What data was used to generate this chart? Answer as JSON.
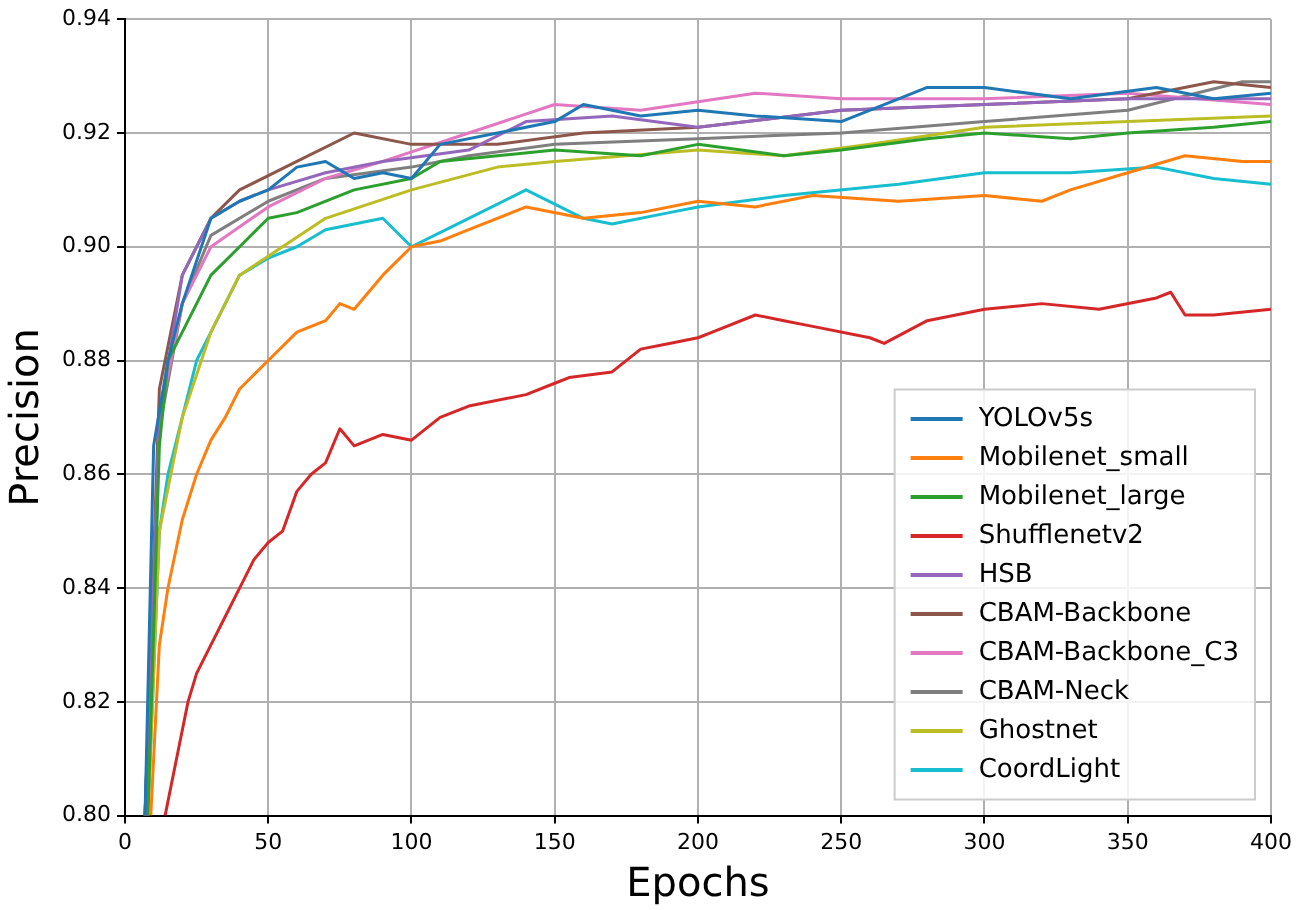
{
  "chart_data": {
    "type": "line",
    "xlabel": "Epochs",
    "ylabel": "Precision",
    "xlim": [
      0,
      400
    ],
    "ylim": [
      0.8,
      0.94
    ],
    "xticks": [
      0,
      50,
      100,
      150,
      200,
      250,
      300,
      350,
      400
    ],
    "yticks": [
      {
        "value": 0.8,
        "label": "0.80"
      },
      {
        "value": 0.82,
        "label": "0.82"
      },
      {
        "value": 0.84,
        "label": "0.84"
      },
      {
        "value": 0.86,
        "label": "0.86"
      },
      {
        "value": 0.88,
        "label": "0.88"
      },
      {
        "value": 0.9,
        "label": "0.90"
      },
      {
        "value": 0.92,
        "label": "0.92"
      },
      {
        "value": 0.94,
        "label": "0.94"
      }
    ],
    "grid": true,
    "legend": "bottom right",
    "marker": "none",
    "line_style": "solid",
    "series": [
      {
        "name": "YOLOv5s",
        "color": "#1f77b4",
        "x": [
          7,
          10,
          15,
          20,
          30,
          40,
          50,
          60,
          70,
          80,
          90,
          100,
          110,
          130,
          150,
          160,
          180,
          200,
          220,
          250,
          270,
          280,
          300,
          330,
          360,
          380,
          400
        ],
        "values": [
          0.8,
          0.865,
          0.88,
          0.89,
          0.905,
          0.908,
          0.91,
          0.914,
          0.915,
          0.912,
          0.913,
          0.912,
          0.918,
          0.92,
          0.922,
          0.925,
          0.923,
          0.924,
          0.923,
          0.922,
          0.926,
          0.928,
          0.928,
          0.926,
          0.928,
          0.926,
          0.927
        ]
      },
      {
        "name": "Mobilenet_small",
        "color": "#ff7f0e",
        "x": [
          9,
          12,
          15,
          20,
          25,
          30,
          35,
          40,
          50,
          60,
          70,
          75,
          80,
          90,
          100,
          110,
          120,
          140,
          160,
          180,
          200,
          220,
          240,
          270,
          300,
          320,
          330,
          350,
          370,
          390,
          400
        ],
        "values": [
          0.8,
          0.83,
          0.84,
          0.852,
          0.86,
          0.866,
          0.87,
          0.875,
          0.88,
          0.885,
          0.887,
          0.89,
          0.889,
          0.895,
          0.9,
          0.901,
          0.903,
          0.907,
          0.905,
          0.906,
          0.908,
          0.907,
          0.909,
          0.908,
          0.909,
          0.908,
          0.91,
          0.913,
          0.916,
          0.915,
          0.915
        ]
      },
      {
        "name": "Mobilenet_large",
        "color": "#2ca02c",
        "x": [
          8,
          12,
          15,
          20,
          30,
          40,
          50,
          60,
          80,
          100,
          110,
          130,
          150,
          180,
          200,
          230,
          250,
          280,
          300,
          330,
          350,
          380,
          400
        ],
        "values": [
          0.8,
          0.865,
          0.88,
          0.885,
          0.895,
          0.9,
          0.905,
          0.906,
          0.91,
          0.912,
          0.915,
          0.916,
          0.917,
          0.916,
          0.918,
          0.916,
          0.917,
          0.919,
          0.92,
          0.919,
          0.92,
          0.921,
          0.922
        ]
      },
      {
        "name": "Shufflenetv2",
        "color": "#d62728",
        "x": [
          14,
          18,
          22,
          25,
          30,
          35,
          40,
          45,
          50,
          55,
          60,
          65,
          70,
          75,
          80,
          90,
          100,
          110,
          120,
          140,
          150,
          155,
          170,
          180,
          190,
          200,
          205,
          220,
          230,
          240,
          260,
          265,
          280,
          300,
          320,
          340,
          360,
          365,
          370,
          380,
          400
        ],
        "values": [
          0.8,
          0.81,
          0.82,
          0.825,
          0.83,
          0.835,
          0.84,
          0.845,
          0.848,
          0.85,
          0.857,
          0.86,
          0.862,
          0.868,
          0.865,
          0.867,
          0.866,
          0.87,
          0.872,
          0.874,
          0.876,
          0.877,
          0.878,
          0.882,
          0.883,
          0.884,
          0.885,
          0.888,
          0.887,
          0.886,
          0.884,
          0.883,
          0.887,
          0.889,
          0.89,
          0.889,
          0.891,
          0.892,
          0.888,
          0.888,
          0.889
        ]
      },
      {
        "name": "HSB",
        "color": "#9467bd",
        "x": [
          7,
          12,
          20,
          30,
          40,
          50,
          70,
          90,
          120,
          140,
          170,
          200,
          250,
          300,
          350,
          400
        ],
        "values": [
          0.8,
          0.87,
          0.895,
          0.905,
          0.908,
          0.91,
          0.913,
          0.915,
          0.917,
          0.922,
          0.923,
          0.921,
          0.924,
          0.925,
          0.926,
          0.926
        ]
      },
      {
        "name": "CBAM-Backbone",
        "color": "#8c564b",
        "x": [
          7,
          12,
          20,
          30,
          40,
          60,
          80,
          100,
          130,
          160,
          200,
          250,
          300,
          350,
          380,
          400
        ],
        "values": [
          0.8,
          0.875,
          0.895,
          0.905,
          0.91,
          0.915,
          0.92,
          0.918,
          0.918,
          0.92,
          0.921,
          0.924,
          0.925,
          0.926,
          0.929,
          0.928
        ]
      },
      {
        "name": "CBAM-Backbone_C3",
        "color": "#e377c2",
        "x": [
          7,
          12,
          20,
          30,
          50,
          70,
          90,
          120,
          150,
          180,
          220,
          250,
          300,
          350,
          400
        ],
        "values": [
          0.8,
          0.87,
          0.89,
          0.9,
          0.907,
          0.912,
          0.915,
          0.92,
          0.925,
          0.924,
          0.927,
          0.926,
          0.926,
          0.927,
          0.925
        ]
      },
      {
        "name": "CBAM-Neck",
        "color": "#7f7f7f",
        "x": [
          7,
          12,
          20,
          30,
          50,
          70,
          100,
          120,
          150,
          200,
          250,
          300,
          350,
          390,
          400
        ],
        "values": [
          0.8,
          0.868,
          0.89,
          0.902,
          0.908,
          0.912,
          0.914,
          0.916,
          0.918,
          0.919,
          0.92,
          0.922,
          0.924,
          0.929,
          0.929
        ]
      },
      {
        "name": "Ghostnet",
        "color": "#bcbd22",
        "x": [
          8,
          12,
          20,
          30,
          40,
          70,
          100,
          130,
          150,
          200,
          230,
          260,
          300,
          350,
          400
        ],
        "values": [
          0.8,
          0.85,
          0.87,
          0.885,
          0.895,
          0.905,
          0.91,
          0.914,
          0.915,
          0.917,
          0.916,
          0.918,
          0.921,
          0.922,
          0.923
        ]
      },
      {
        "name": "CoordLight",
        "color": "#17becf",
        "x": [
          8,
          12,
          15,
          20,
          25,
          30,
          40,
          50,
          60,
          70,
          90,
          100,
          120,
          140,
          160,
          170,
          190,
          200,
          230,
          270,
          300,
          330,
          360,
          380,
          400
        ],
        "values": [
          0.8,
          0.85,
          0.86,
          0.87,
          0.88,
          0.885,
          0.895,
          0.898,
          0.9,
          0.903,
          0.905,
          0.9,
          0.905,
          0.91,
          0.905,
          0.904,
          0.906,
          0.907,
          0.909,
          0.911,
          0.913,
          0.913,
          0.914,
          0.912,
          0.911
        ]
      }
    ]
  }
}
